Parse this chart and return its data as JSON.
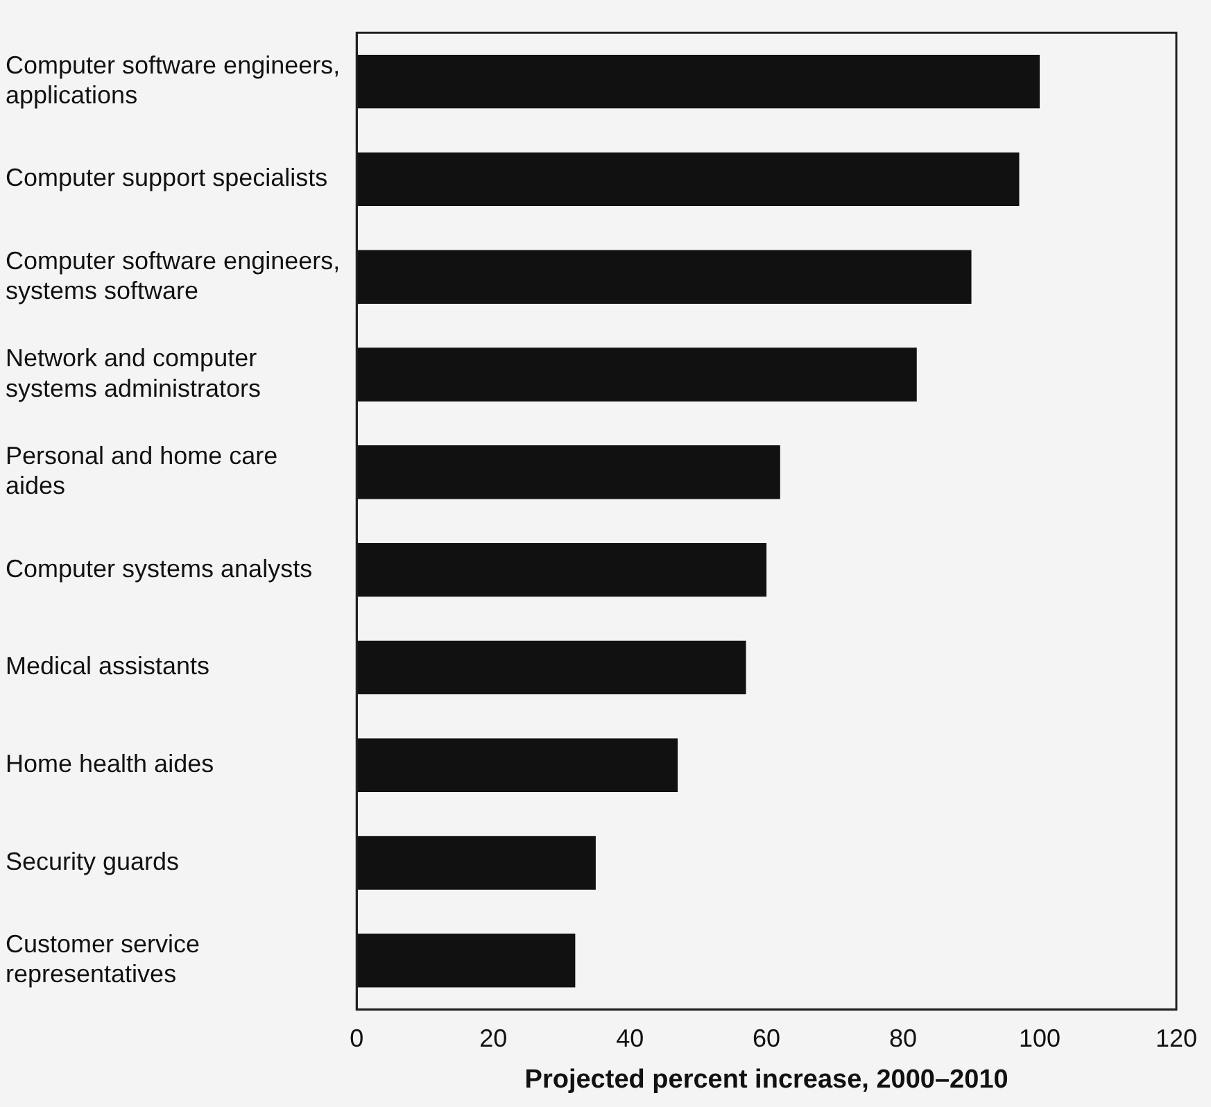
{
  "chart_data": {
    "type": "bar",
    "orientation": "horizontal",
    "xlabel": "Projected percent increase, 2000–2010",
    "categories": [
      "Computer software engineers,\napplications",
      "Computer support specialists",
      "Computer software engineers,\nsystems software",
      "Network and computer\nsystems administrators",
      "Personal and home care\naides",
      "Computer systems analysts",
      "Medical assistants",
      "Home health aides",
      "Security guards",
      "Customer service\nrepresentatives"
    ],
    "values": [
      100,
      97,
      90,
      82,
      62,
      60,
      57,
      47,
      35,
      32
    ],
    "color": "#111111",
    "xlim": [
      0,
      120
    ],
    "xticks": [
      0,
      20,
      40,
      60,
      80,
      100,
      120
    ],
    "grid": false,
    "legend": false
  }
}
